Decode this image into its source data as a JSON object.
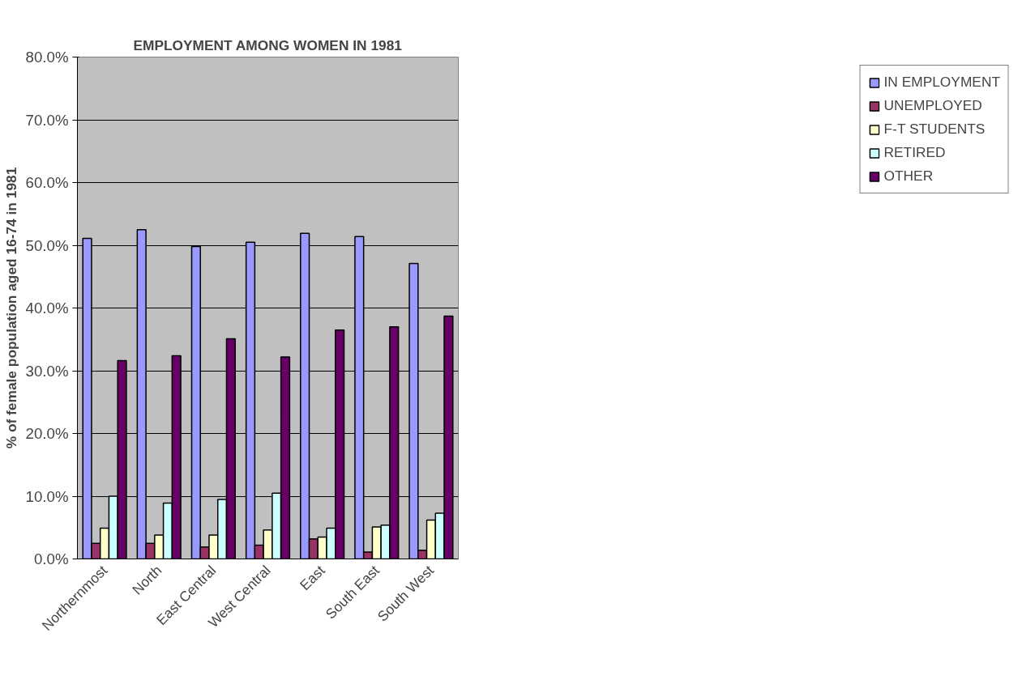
{
  "chart_data": {
    "type": "bar",
    "title": "EMPLOYMENT AMONG WOMEN IN 1981",
    "ylabel": "% of female population aged 16-74 in 1981",
    "categories": [
      "Northernmost",
      "North",
      "East Central",
      "West Central",
      "East",
      "South East",
      "South West"
    ],
    "series": [
      {
        "name": "IN EMPLOYMENT",
        "color": "#9999ff",
        "values": [
          51.1,
          52.5,
          49.8,
          50.5,
          51.9,
          51.4,
          47.1
        ]
      },
      {
        "name": "UNEMPLOYED",
        "color": "#993366",
        "values": [
          2.5,
          2.5,
          1.9,
          2.2,
          3.2,
          1.1,
          1.4
        ]
      },
      {
        "name": "F-T STUDENTS",
        "color": "#ffffcc",
        "values": [
          4.9,
          3.8,
          3.8,
          4.6,
          3.5,
          5.1,
          6.2
        ]
      },
      {
        "name": "RETIRED",
        "color": "#ccffff",
        "values": [
          10.0,
          8.9,
          9.5,
          10.5,
          4.9,
          5.4,
          7.3
        ]
      },
      {
        "name": "OTHER",
        "color": "#660066",
        "values": [
          31.6,
          32.4,
          35.1,
          32.2,
          36.5,
          37.0,
          38.7
        ]
      }
    ],
    "ylim": [
      0,
      80
    ],
    "yticks": [
      {
        "value": 0,
        "label": "0.0%"
      },
      {
        "value": 10,
        "label": "10.0%"
      },
      {
        "value": 20,
        "label": "20.0%"
      },
      {
        "value": 30,
        "label": "30.0%"
      },
      {
        "value": 40,
        "label": "40.0%"
      },
      {
        "value": 50,
        "label": "50.0%"
      },
      {
        "value": 60,
        "label": "60.0%"
      },
      {
        "value": 70,
        "label": "70.0%"
      },
      {
        "value": 80,
        "label": "80.0%"
      }
    ],
    "grid": "y",
    "legend": "right"
  }
}
